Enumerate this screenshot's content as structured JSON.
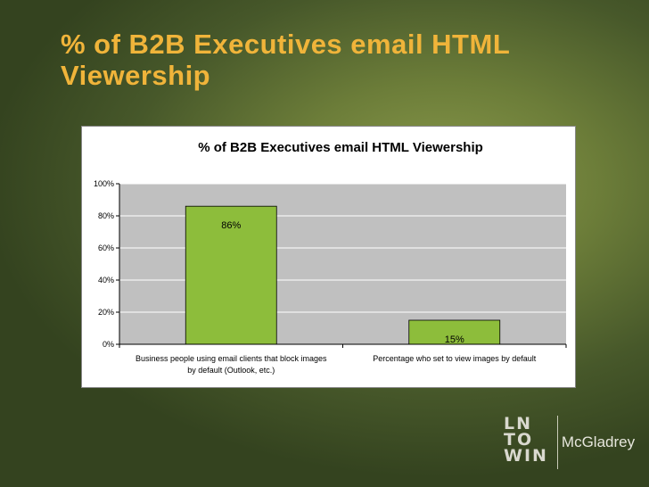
{
  "slide": {
    "title": "% of B2B Executives email HTML Viewership"
  },
  "chart_data": {
    "type": "bar",
    "title": "% of B2B Executives email HTML Viewership",
    "categories": [
      "Business people using email clients that block images by default (Outlook, etc.)",
      "Percentage who set to view images by default"
    ],
    "category_lines": [
      [
        "Business people using email clients that block images",
        "by default (Outlook, etc.)"
      ],
      [
        "Percentage who set to view images by default"
      ]
    ],
    "values": [
      86,
      15
    ],
    "data_labels": [
      "86%",
      "15%"
    ],
    "yticks": [
      0,
      20,
      40,
      60,
      80,
      100
    ],
    "ytick_labels": [
      "0%",
      "20%",
      "40%",
      "60%",
      "80%",
      "100%"
    ],
    "ylim": [
      0,
      100
    ],
    "grid": true,
    "bar_color": "#8dbd3b",
    "plot_bg": "#c0c0c0"
  },
  "logo": {
    "mark_lines": [
      "LN",
      "TO",
      "WIN"
    ],
    "company": "McGladrey"
  }
}
